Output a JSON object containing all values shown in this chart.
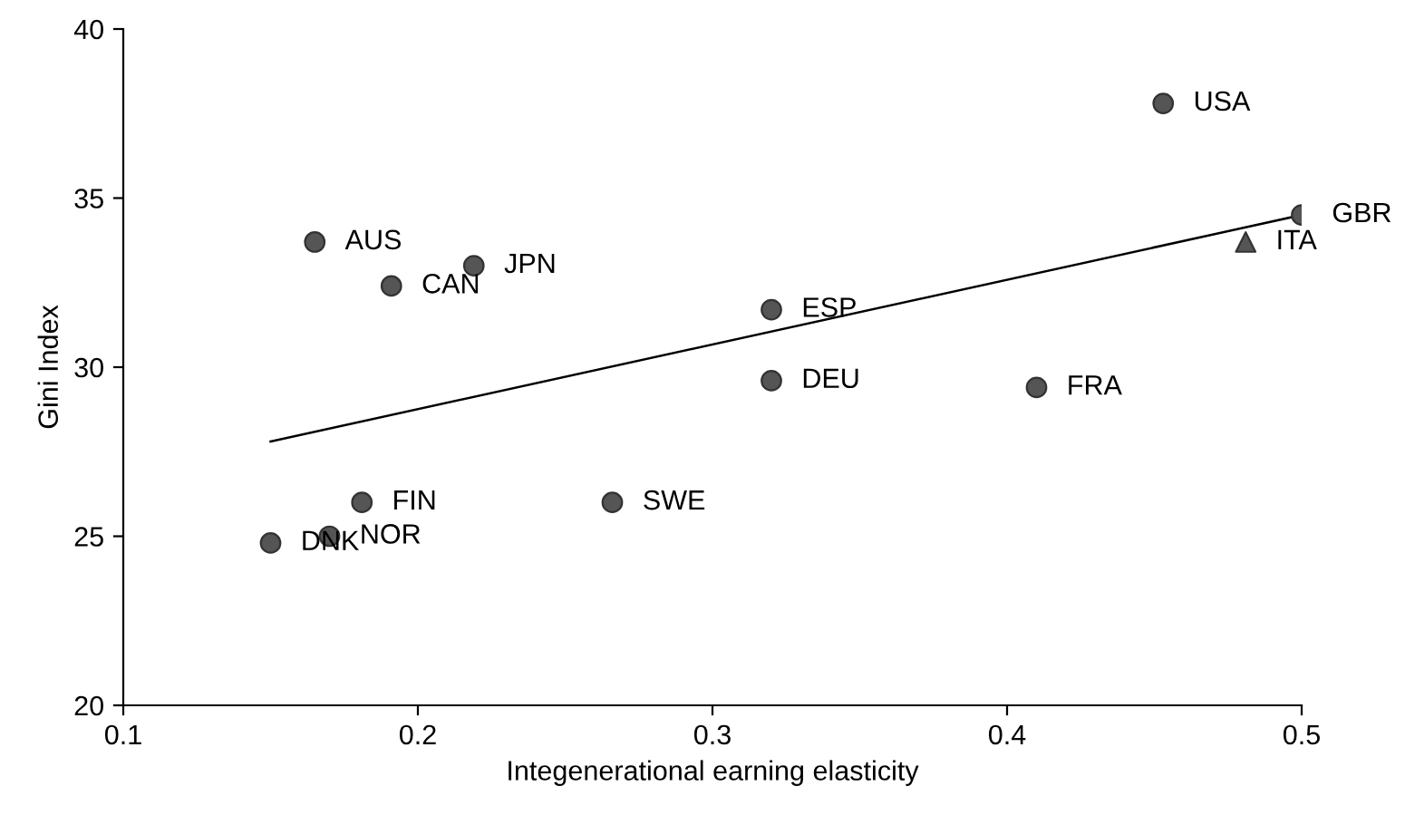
{
  "chart_data": {
    "type": "scatter",
    "xlabel": "Integenerational earning elasticity",
    "ylabel": "Gini Index",
    "xlim": [
      0.1,
      0.5
    ],
    "xticks": [
      0.1,
      0.2,
      0.3,
      0.4,
      0.5
    ],
    "ylim": [
      20,
      40
    ],
    "yticks": [
      20,
      25,
      30,
      35,
      40
    ],
    "grid": false,
    "legend": false,
    "series": [
      {
        "marker": "circle",
        "color": "#555555",
        "x": [
          0.453,
          0.5,
          0.165,
          0.219,
          0.191,
          0.32,
          0.32,
          0.41,
          0.266,
          0.181,
          0.17,
          0.15
        ],
        "values": [
          37.8,
          34.5,
          33.7,
          33.0,
          32.4,
          31.7,
          29.6,
          29.4,
          26.0,
          26.0,
          25.0,
          24.8
        ]
      },
      {
        "marker": "triangle",
        "color": "#555555",
        "x": [
          0.481
        ],
        "values": [
          33.7
        ]
      },
      {
        "type": "line",
        "marker": "none",
        "color": "#000000",
        "x": [
          0.15,
          0.5
        ],
        "values": [
          27.8,
          34.5
        ]
      }
    ],
    "annotations": [
      {
        "text": "USA",
        "x": 0.453,
        "y": 37.8
      },
      {
        "text": "GBR",
        "x": 0.5,
        "y": 34.5
      },
      {
        "text": "ITA",
        "x": 0.481,
        "y": 33.7
      },
      {
        "text": "AUS",
        "x": 0.165,
        "y": 33.7
      },
      {
        "text": "JPN",
        "x": 0.219,
        "y": 33.0
      },
      {
        "text": "CAN",
        "x": 0.191,
        "y": 32.4
      },
      {
        "text": "ESP",
        "x": 0.32,
        "y": 31.7
      },
      {
        "text": "DEU",
        "x": 0.32,
        "y": 29.6
      },
      {
        "text": "FRA",
        "x": 0.41,
        "y": 29.4
      },
      {
        "text": "SWE",
        "x": 0.266,
        "y": 26.0
      },
      {
        "text": "FIN",
        "x": 0.181,
        "y": 26.0
      },
      {
        "text": "NOR",
        "x": 0.17,
        "y": 25.0
      },
      {
        "text": "DNK",
        "x": 0.15,
        "y": 24.8
      }
    ]
  }
}
